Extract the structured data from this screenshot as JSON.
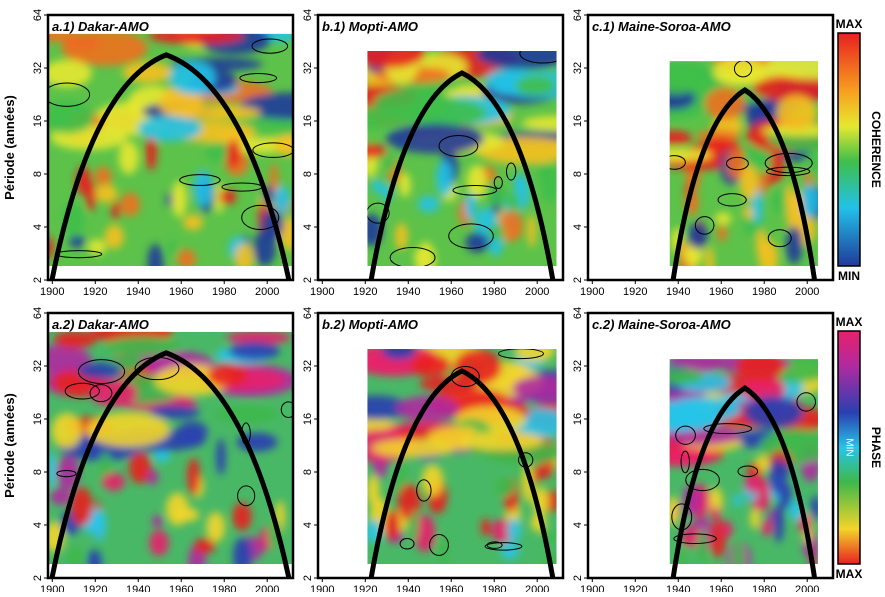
{
  "y_label": "Période (années)",
  "yticks": [
    2,
    4,
    8,
    16,
    32,
    64
  ],
  "xticks": [
    1900,
    1920,
    1940,
    1960,
    1980,
    2000
  ],
  "panels": [
    {
      "title": "a.1) Dakar-AMO"
    },
    {
      "title": "b.1) Mopti-AMO"
    },
    {
      "title": "c.1) Maine-Soroa-AMO"
    },
    {
      "title": "a.2) Dakar-AMO"
    },
    {
      "title": "b.2) Mopti-AMO"
    },
    {
      "title": "c.2) Maine-Soroa-AMO"
    }
  ],
  "colorbars": [
    {
      "top": "MAX",
      "bottom": "MIN",
      "label": "COHERENCE"
    },
    {
      "top": "MAX",
      "bottom": "MAX",
      "middle": "MIN",
      "label": "PHASE"
    }
  ]
}
